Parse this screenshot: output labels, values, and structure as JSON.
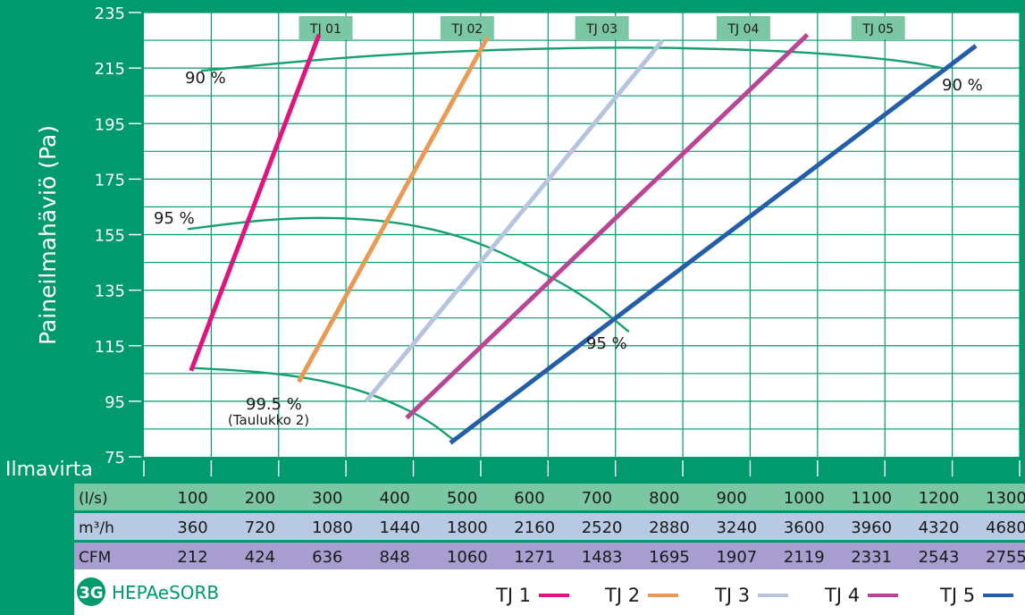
{
  "chart_data": {
    "type": "line",
    "ylabel": "Paineilmahäviö (Pa)",
    "xlabel": "Ilmavirta",
    "y_ticks": [
      75,
      95,
      115,
      135,
      155,
      175,
      195,
      215,
      235
    ],
    "ylim": [
      75,
      235
    ],
    "xlim": [
      0,
      1300
    ],
    "grid": true,
    "units_rows": [
      {
        "head": "(l/s)",
        "values": [
          "100",
          "200",
          "300",
          "400",
          "500",
          "600",
          "700",
          "800",
          "900",
          "1000",
          "1100",
          "1200",
          "1300"
        ]
      },
      {
        "head": "m³/h",
        "values": [
          "360",
          "720",
          "1080",
          "1440",
          "1800",
          "2160",
          "2520",
          "2880",
          "3240",
          "3600",
          "3960",
          "4320",
          "4680"
        ]
      },
      {
        "head": "CFM",
        "values": [
          "212",
          "424",
          "636",
          "848",
          "1060",
          "1271",
          "1483",
          "1695",
          "1907",
          "2119",
          "2331",
          "2543",
          "2755"
        ]
      }
    ],
    "series": [
      {
        "name": "TJ 1",
        "color": "#e0147c",
        "x": [
          70,
          260
        ],
        "y": [
          106,
          227
        ]
      },
      {
        "name": "TJ 2",
        "color": "#e99a55",
        "x": [
          230,
          510
        ],
        "y": [
          102,
          226
        ]
      },
      {
        "name": "TJ 3",
        "color": "#b7c4e0",
        "x": [
          330,
          770
        ],
        "y": [
          95,
          225
        ]
      },
      {
        "name": "TJ 4",
        "color": "#b84595",
        "x": [
          390,
          985
        ],
        "y": [
          89,
          227
        ]
      },
      {
        "name": "TJ 5",
        "color": "#255ea8",
        "x": [
          455,
          1235
        ],
        "y": [
          80,
          223
        ]
      }
    ],
    "tj_tags": [
      {
        "label": "TJ 01",
        "x": 270
      },
      {
        "label": "TJ 02",
        "x": 480
      },
      {
        "label": "TJ 03",
        "x": 680
      },
      {
        "label": "TJ 04",
        "x": 890
      },
      {
        "label": "TJ 05",
        "x": 1090
      }
    ],
    "efficiency_curves": [
      {
        "label_left": "90 %",
        "label_right": "90 %",
        "x": [
          85,
          300,
          500,
          700,
          850,
          1000,
          1130,
          1185
        ],
        "y": [
          214,
          219,
          221.5,
          222.5,
          222,
          220.5,
          217.5,
          215
        ]
      },
      {
        "label_left": "95 %",
        "label_right": "95 %",
        "x": [
          65,
          180,
          280,
          380,
          480,
          580,
          660,
          720
        ],
        "y": [
          157,
          160.5,
          161.3,
          159.5,
          154,
          143,
          132,
          120
        ]
      },
      {
        "label_left": "99.5 %",
        "label_sub": "(Taulukko 2)",
        "x": [
          70,
          150,
          230,
          300,
          360,
          420,
          460
        ],
        "y": [
          107,
          106,
          104,
          100.5,
          95.5,
          88.5,
          81
        ]
      }
    ],
    "legend": [
      "TJ 1",
      "TJ 2",
      "TJ 3",
      "TJ 4",
      "TJ 5"
    ]
  },
  "brand": {
    "logo_text": "3G",
    "name": "HEPAeSORB"
  },
  "colors": {
    "background": "#009a6e",
    "plot_bg": "#ffffff",
    "grid": "#009a6e",
    "curve": "#16a06c",
    "row1": "#7cc7a3",
    "row2": "#b7c9e3",
    "row3": "#a99ed0"
  }
}
